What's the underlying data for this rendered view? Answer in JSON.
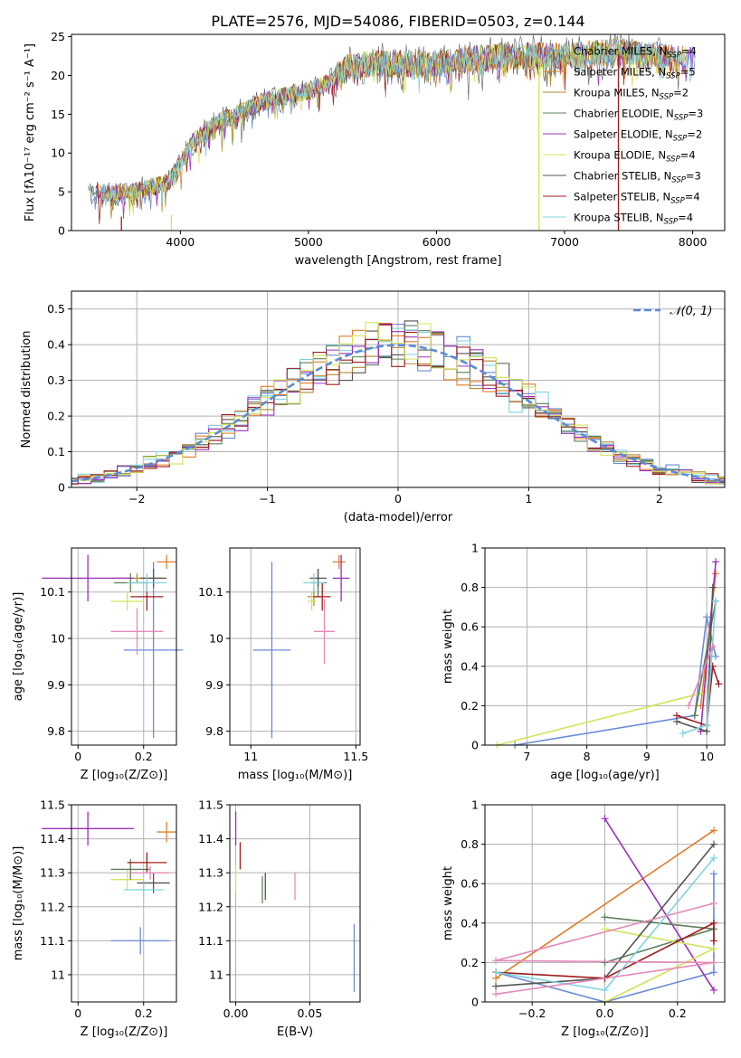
{
  "figure": {
    "title": "PLATE=2576, MJD=54086, FIBERID=0503, z=0.144"
  },
  "models": [
    {
      "name": "Chabrier MILES",
      "nssp": "4",
      "color": "#6a8bd6"
    },
    {
      "name": "Salpeter MILES",
      "nssp": "5",
      "color": "#e07d2a"
    },
    {
      "name": "Kroupa MILES",
      "nssp": "2",
      "color": "#b08a2e"
    },
    {
      "name": "Chabrier ELODIE",
      "nssp": "3",
      "color": "#5c7f5a"
    },
    {
      "name": "Salpeter ELODIE",
      "nssp": "2",
      "color": "#9b30b8"
    },
    {
      "name": "Kroupa ELODIE",
      "nssp": "4",
      "color": "#d4e35a"
    },
    {
      "name": "Chabrier STELIB",
      "nssp": "3",
      "color": "#555555"
    },
    {
      "name": "Salpeter STELIB",
      "nssp": "4",
      "color": "#a01c1c"
    },
    {
      "name": "Kroupa STELIB",
      "nssp": "4",
      "color": "#7fd3e0"
    }
  ],
  "extra_colors": {
    "pink": "#e48ab8",
    "grid": "#b0b0b0",
    "normal_curve": "#5b8bd8"
  },
  "chart_data": [
    {
      "id": "spectrum",
      "type": "line",
      "xlabel": "wavelength [Angstrom, rest frame]",
      "ylabel": "Flux [fλ10⁻¹⁷ erg cm⁻² s⁻¹ A⁻¹]",
      "xlim": [
        3150,
        8250
      ],
      "ylim": [
        0,
        25.3
      ],
      "xticks": [
        4000,
        5000,
        6000,
        7000,
        8000
      ],
      "yticks": [
        0,
        5,
        10,
        15,
        20,
        25
      ],
      "grid": false,
      "legend": "upper-right",
      "envelope_knots": [
        [
          3280,
          5.0
        ],
        [
          3500,
          4.8
        ],
        [
          3700,
          5.2
        ],
        [
          3900,
          6.2
        ],
        [
          4000,
          8.5
        ],
        [
          4100,
          11.5
        ],
        [
          4300,
          14.0
        ],
        [
          4500,
          15.5
        ],
        [
          4700,
          17.0
        ],
        [
          5000,
          18.0
        ],
        [
          5200,
          19.5
        ],
        [
          5300,
          21.0
        ],
        [
          5500,
          21.5
        ],
        [
          6000,
          21.5
        ],
        [
          6500,
          22.5
        ],
        [
          7000,
          22.5
        ],
        [
          7400,
          23.0
        ],
        [
          7700,
          22.5
        ],
        [
          8020,
          22.0
        ]
      ],
      "dropouts": [
        [
          3540,
          1.8
        ],
        [
          3930,
          2.0
        ],
        [
          6800,
          22.3
        ],
        [
          7420,
          22.8
        ]
      ]
    },
    {
      "id": "residuals",
      "type": "histogram",
      "xlabel": "(data-model)/error",
      "ylabel": "Normed distribution",
      "xlim": [
        -2.5,
        2.5
      ],
      "ylim": [
        0,
        0.55
      ],
      "xticks": [
        -2,
        -1,
        0,
        1,
        2
      ],
      "xticklabels": [
        "−2",
        "−1",
        "0",
        "1",
        "2"
      ],
      "yticks": [
        0,
        0.1,
        0.2,
        0.3,
        0.4,
        0.5
      ],
      "grid": true,
      "reference_curve": {
        "label": "𝒩(0, 1)",
        "mean": 0,
        "sigma": 1
      },
      "bin_width": 0.1
    },
    {
      "id": "age_vs_Z",
      "type": "errorbar",
      "xlabel": "Z [log₁₀(Z/Z⊙)]",
      "ylabel": "age  [log₁₀(age/yr)]",
      "xlim": [
        -0.02,
        0.3
      ],
      "ylim": [
        9.77,
        10.195
      ],
      "xticks": [
        0.0,
        0.2
      ],
      "yticks": [
        9.8,
        9.9,
        10.0,
        10.1
      ],
      "grid": true,
      "points": [
        {
          "model": 0,
          "x": 0.23,
          "xerr": 0.09,
          "y": 9.975,
          "yerr": 0.19
        },
        {
          "model": 1,
          "x": 0.27,
          "xerr": 0.03,
          "y": 10.165,
          "yerr": 0.015
        },
        {
          "model": 2,
          "x": 0.18,
          "xerr": 0.08,
          "y": 10.13,
          "yerr": 0.01
        },
        {
          "model": 3,
          "x": 0.16,
          "xerr": 0.05,
          "y": 10.12,
          "yerr": 0.02
        },
        {
          "model": 4,
          "x": 0.03,
          "xerr": 0.14,
          "y": 10.13,
          "yerr": 0.05
        },
        {
          "model": 5,
          "x": 0.15,
          "xerr": 0.05,
          "y": 10.08,
          "yerr": 0.02
        },
        {
          "model": 6,
          "x": 0.23,
          "xerr": 0.04,
          "y": 10.13,
          "yerr": 0.02
        },
        {
          "model": 7,
          "x": 0.21,
          "xerr": 0.05,
          "y": 10.09,
          "yerr": 0.03
        },
        {
          "model": 8,
          "x": 0.21,
          "xerr": 0.06,
          "y": 10.12,
          "yerr": 0.02
        },
        {
          "model": "pink",
          "x": 0.18,
          "xerr": 0.08,
          "y": 10.015,
          "yerr": 0.05
        }
      ]
    },
    {
      "id": "age_vs_mass",
      "type": "errorbar",
      "xlabel": "mass [log₁₀(M/M⊙)]",
      "ylabel": "",
      "xlim": [
        10.9,
        11.52
      ],
      "ylim": [
        9.77,
        10.195
      ],
      "xticks": [
        11.0,
        11.5
      ],
      "yticks": [
        9.8,
        9.9,
        10.0,
        10.1
      ],
      "grid": true,
      "points": [
        {
          "model": 0,
          "x": 11.1,
          "xerr": 0.09,
          "y": 9.975,
          "yerr": 0.19
        },
        {
          "model": 1,
          "x": 11.42,
          "xerr": 0.03,
          "y": 10.165,
          "yerr": 0.015
        },
        {
          "model": 2,
          "x": 11.3,
          "xerr": 0.03,
          "y": 10.09,
          "yerr": 0.02
        },
        {
          "model": 3,
          "x": 11.32,
          "xerr": 0.04,
          "y": 10.12,
          "yerr": 0.03
        },
        {
          "model": 4,
          "x": 11.43,
          "xerr": 0.04,
          "y": 10.13,
          "yerr": 0.05
        },
        {
          "model": 5,
          "x": 11.29,
          "xerr": 0.02,
          "y": 10.08,
          "yerr": 0.02
        },
        {
          "model": 6,
          "x": 11.32,
          "xerr": 0.04,
          "y": 10.13,
          "yerr": 0.02
        },
        {
          "model": 7,
          "x": 11.34,
          "xerr": 0.04,
          "y": 10.09,
          "yerr": 0.03
        },
        {
          "model": 8,
          "x": 11.3,
          "xerr": 0.05,
          "y": 10.12,
          "yerr": 0.02
        },
        {
          "model": "pink",
          "x": 11.35,
          "xerr": 0.05,
          "y": 10.015,
          "yerr": 0.07
        }
      ]
    },
    {
      "id": "mass_weight_vs_age",
      "type": "line",
      "xlabel": "age  [log₁₀(age/yr)]",
      "ylabel": "mass weight",
      "xlim": [
        6.3,
        10.3
      ],
      "ylim": [
        0,
        1.0
      ],
      "xticks": [
        7,
        8,
        9,
        10
      ],
      "yticks": [
        0.0,
        0.2,
        0.4,
        0.6,
        0.8,
        1.0
      ],
      "grid": true,
      "series": [
        {
          "model": 0,
          "points": [
            [
              6.8,
              0.0
            ],
            [
              9.8,
              0.15
            ],
            [
              10.0,
              0.65
            ],
            [
              10.15,
              0.45
            ]
          ]
        },
        {
          "model": 1,
          "points": [
            [
              9.9,
              0.2
            ],
            [
              10.15,
              0.87
            ]
          ]
        },
        {
          "model": 5,
          "points": [
            [
              6.5,
              0.0
            ],
            [
              10.0,
              0.27
            ],
            [
              10.1,
              0.4
            ]
          ]
        },
        {
          "model": 4,
          "points": [
            [
              9.9,
              0.07
            ],
            [
              10.15,
              0.93
            ]
          ]
        },
        {
          "model": 3,
          "points": [
            [
              9.8,
              0.15
            ],
            [
              10.15,
              0.73
            ]
          ]
        },
        {
          "model": 6,
          "points": [
            [
              9.5,
              0.12
            ],
            [
              10.0,
              0.07
            ],
            [
              10.1,
              0.8
            ]
          ]
        },
        {
          "model": 7,
          "points": [
            [
              9.5,
              0.15
            ],
            [
              10.0,
              0.1
            ],
            [
              10.1,
              0.4
            ],
            [
              10.2,
              0.31
            ]
          ]
        },
        {
          "model": 8,
          "points": [
            [
              9.6,
              0.06
            ],
            [
              10.0,
              0.1
            ],
            [
              10.15,
              0.73
            ]
          ]
        },
        {
          "model": "pink",
          "points": [
            [
              9.7,
              0.2
            ],
            [
              10.1,
              0.5
            ]
          ]
        }
      ]
    },
    {
      "id": "mass_vs_Z",
      "type": "errorbar",
      "xlabel": "Z [log₁₀(Z/Z⊙)]",
      "ylabel": "mass [log₁₀(M/M⊙)]",
      "xlim": [
        -0.02,
        0.3
      ],
      "ylim": [
        10.92,
        11.5
      ],
      "xticks": [
        0.0,
        0.2
      ],
      "yticks": [
        11.0,
        11.1,
        11.2,
        11.3,
        11.4,
        11.5
      ],
      "grid": true,
      "points": [
        {
          "model": 0,
          "x": 0.19,
          "xerr": 0.09,
          "y": 11.1,
          "yerr": 0.04
        },
        {
          "model": 1,
          "x": 0.27,
          "xerr": 0.03,
          "y": 11.42,
          "yerr": 0.03
        },
        {
          "model": 4,
          "x": 0.03,
          "xerr": 0.14,
          "y": 11.43,
          "yerr": 0.05
        },
        {
          "model": 5,
          "x": 0.15,
          "xerr": 0.05,
          "y": 11.28,
          "yerr": 0.03
        },
        {
          "model": 3,
          "x": 0.16,
          "xerr": 0.06,
          "y": 11.31,
          "yerr": 0.03
        },
        {
          "model": 6,
          "x": 0.23,
          "xerr": 0.05,
          "y": 11.27,
          "yerr": 0.03
        },
        {
          "model": 7,
          "x": 0.21,
          "xerr": 0.06,
          "y": 11.33,
          "yerr": 0.03
        },
        {
          "model": 8,
          "x": 0.2,
          "xerr": 0.06,
          "y": 11.25,
          "yerr": 0.02
        },
        {
          "model": "pink",
          "x": 0.22,
          "xerr": 0.06,
          "y": 11.3,
          "yerr": 0.02
        }
      ]
    },
    {
      "id": "mass_vs_ebv",
      "type": "errorbar",
      "xlabel": "E(B-V)",
      "ylabel": "",
      "xlim": [
        -0.004,
        0.084
      ],
      "ylim": [
        10.92,
        11.5
      ],
      "xticks": [
        0.0,
        0.05
      ],
      "xticklabels": [
        "0.00",
        "0.05"
      ],
      "yticks": [
        11.0,
        11.1,
        11.2,
        11.3,
        11.4,
        11.5
      ],
      "grid": true,
      "points": [
        {
          "model": 4,
          "x": 0.0,
          "y": 11.43,
          "yerr": 0.05
        },
        {
          "model": 7,
          "x": 0.003,
          "y": 11.35,
          "yerr": 0.04
        },
        {
          "model": 5,
          "x": 0.0,
          "y": 11.28,
          "yerr": 0.04
        },
        {
          "model": 3,
          "x": 0.018,
          "y": 11.25,
          "yerr": 0.04
        },
        {
          "model": 6,
          "x": 0.02,
          "y": 11.26,
          "yerr": 0.04
        },
        {
          "model": "pink",
          "x": 0.04,
          "y": 11.26,
          "yerr": 0.04
        },
        {
          "model": 0,
          "x": 0.08,
          "y": 11.05,
          "yerr": 0.1
        }
      ]
    },
    {
      "id": "mass_weight_vs_Z",
      "type": "line",
      "xlabel": "Z [log₁₀(Z/Z⊙)]",
      "ylabel": "mass weight",
      "xlim": [
        -0.33,
        0.33
      ],
      "ylim": [
        0,
        1.0
      ],
      "xticks": [
        -0.2,
        0.0,
        0.2
      ],
      "xticklabels": [
        "−0.2",
        "0.0",
        "0.2"
      ],
      "yticks": [
        0.0,
        0.2,
        0.4,
        0.6,
        0.8,
        1.0
      ],
      "grid": true,
      "series": [
        {
          "model": 0,
          "points": [
            [
              -0.3,
              0.15
            ],
            [
              0.0,
              0.0
            ],
            [
              0.3,
              0.15
            ],
            [
              0.3,
              0.65
            ]
          ]
        },
        {
          "model": 1,
          "points": [
            [
              -0.3,
              0.12
            ],
            [
              0.3,
              0.87
            ]
          ]
        },
        {
          "model": 4,
          "points": [
            [
              0.0,
              0.93
            ],
            [
              0.3,
              0.06
            ]
          ]
        },
        {
          "model": 3,
          "points": [
            [
              0.0,
              0.2
            ],
            [
              0.3,
              0.37
            ],
            [
              0.0,
              0.43
            ]
          ]
        },
        {
          "model": 5,
          "points": [
            [
              0.0,
              0.0
            ],
            [
              0.3,
              0.27
            ],
            [
              0.0,
              0.37
            ]
          ]
        },
        {
          "model": 6,
          "points": [
            [
              -0.3,
              0.08
            ],
            [
              0.0,
              0.12
            ],
            [
              0.3,
              0.8
            ]
          ]
        },
        {
          "model": 7,
          "points": [
            [
              -0.3,
              0.15
            ],
            [
              0.0,
              0.12
            ],
            [
              0.3,
              0.4
            ],
            [
              0.3,
              0.31
            ]
          ]
        },
        {
          "model": 8,
          "points": [
            [
              -0.3,
              0.15
            ],
            [
              0.0,
              0.06
            ],
            [
              0.3,
              0.73
            ]
          ]
        },
        {
          "model": "pink",
          "points": [
            [
              -0.3,
              0.04
            ],
            [
              0.3,
              0.2
            ],
            [
              -0.3,
              0.21
            ],
            [
              0.3,
              0.5
            ]
          ]
        }
      ]
    }
  ]
}
